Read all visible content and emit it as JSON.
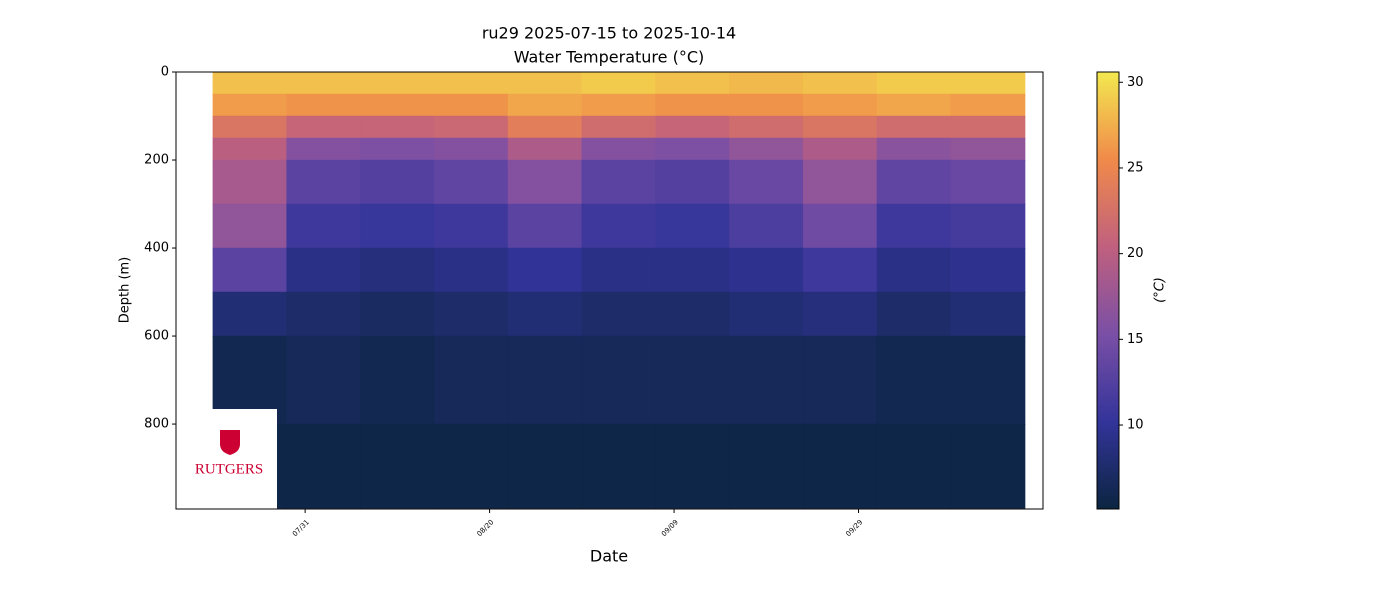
{
  "chart_data": {
    "type": "heatmap",
    "title": "ru29 2025-07-15 to 2025-10-14",
    "subtitle": "Water Temperature (°C)",
    "xlabel": "Date",
    "ylabel": "Depth (m)",
    "colorbar_label": "(°C)",
    "xlim": [
      198,
      292
    ],
    "xticks": [
      {
        "value": 212,
        "label": "07/31"
      },
      {
        "value": 232,
        "label": "08/20"
      },
      {
        "value": 252,
        "label": "09/09"
      },
      {
        "value": 272,
        "label": "09/29"
      }
    ],
    "ylim": [
      993,
      0
    ],
    "yticks": [
      0,
      200,
      400,
      600,
      800
    ],
    "x_bins": [
      202,
      210,
      218,
      226,
      234,
      242,
      250,
      258,
      266,
      274,
      282,
      290
    ],
    "y_bins": [
      0,
      50,
      100,
      150,
      200,
      300,
      400,
      500,
      600,
      800,
      990
    ],
    "values": [
      [
        28.5,
        26.5,
        23,
        20,
        18.5,
        17,
        13,
        8,
        6,
        5.5
      ],
      [
        28.5,
        26,
        21,
        16,
        13,
        11,
        9,
        7.5,
        6.5,
        5.5
      ],
      [
        28.5,
        26,
        21,
        15.5,
        12.5,
        10.5,
        8.5,
        7,
        6,
        5.5
      ],
      [
        28.5,
        26,
        21.5,
        16,
        13.5,
        11,
        9,
        7.5,
        6.5,
        5.5
      ],
      [
        28.5,
        27,
        24,
        19,
        16,
        13,
        10,
        8,
        6.5,
        5.5
      ],
      [
        29,
        26.5,
        22,
        16,
        13,
        11,
        9,
        7.5,
        6.5,
        5.5
      ],
      [
        28.5,
        26,
        21,
        15.5,
        12.5,
        10.5,
        9,
        7.5,
        6.5,
        5.5
      ],
      [
        28,
        26,
        22,
        17,
        14,
        12,
        9.5,
        8,
        6.5,
        5.5
      ],
      [
        28.5,
        26.5,
        23,
        19,
        17,
        14.5,
        11,
        8.5,
        6.5,
        5.5
      ],
      [
        29,
        27,
        22,
        16.5,
        13.5,
        11,
        9,
        7.5,
        6,
        5.5
      ],
      [
        29,
        26.5,
        22,
        17,
        14,
        11.5,
        9.5,
        8,
        6,
        5.5
      ]
    ],
    "clim": [
      5.1,
      30.6
    ],
    "cticks": [
      10,
      15,
      20,
      25,
      30
    ],
    "colormap": [
      "#0b2540",
      "#33349a",
      "#7a4fa6",
      "#c0607e",
      "#f08a4a",
      "#f3e84f"
    ],
    "logo": "RUTGERS"
  }
}
